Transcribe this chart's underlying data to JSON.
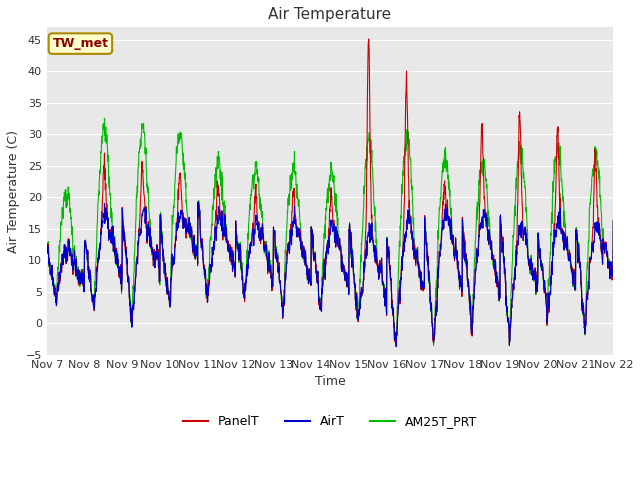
{
  "title": "Air Temperature",
  "xlabel": "Time",
  "ylabel": "Air Temperature (C)",
  "ylim": [
    -5,
    47
  ],
  "yticks": [
    -5,
    0,
    5,
    10,
    15,
    20,
    25,
    30,
    35,
    40,
    45
  ],
  "xtick_labels": [
    "Nov 7",
    "Nov 8",
    "Nov 9",
    "Nov 10",
    "Nov 11",
    "Nov 12",
    "Nov 13",
    "Nov 14",
    "Nov 15",
    "Nov 16",
    "Nov 17",
    "Nov 18",
    "Nov 19",
    "Nov 20",
    "Nov 21",
    "Nov 22"
  ],
  "legend_labels": [
    "PanelT",
    "AirT",
    "AM25T_PRT"
  ],
  "legend_colors": [
    "#cc0000",
    "#0000cc",
    "#00bb00"
  ],
  "annotation_text": "TW_met",
  "annotation_box_facecolor": "#ffffcc",
  "annotation_box_edgecolor": "#aa8800",
  "plot_bg_color": "#e8e8e8",
  "grid_color": "#ffffff",
  "line_width": 0.8,
  "title_fontsize": 11,
  "axis_label_fontsize": 9,
  "tick_fontsize": 8,
  "legend_fontsize": 9,
  "daily_min": [
    4,
    2,
    -1,
    2,
    4,
    4,
    2,
    2,
    0,
    -3,
    -3,
    0,
    -3,
    1,
    1,
    5
  ],
  "daily_max_air": [
    12,
    18,
    17,
    18,
    17,
    16,
    16,
    15,
    14,
    16,
    17,
    18,
    15,
    16,
    15,
    15
  ],
  "panel_solar": [
    0,
    8,
    8,
    7,
    5,
    5,
    5,
    5,
    31,
    24,
    5,
    15,
    19,
    15,
    12,
    5
  ],
  "am25t_solar": [
    9,
    14,
    14,
    13,
    9,
    9,
    9,
    9,
    15,
    14,
    9,
    9,
    13,
    12,
    12,
    8
  ]
}
